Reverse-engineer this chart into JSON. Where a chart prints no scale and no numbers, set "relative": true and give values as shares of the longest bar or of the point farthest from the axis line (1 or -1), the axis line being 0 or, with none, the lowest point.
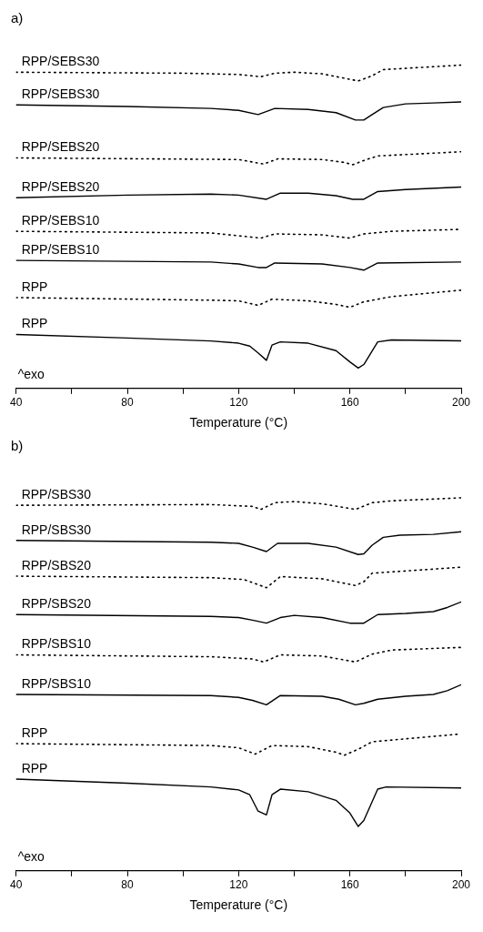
{
  "chart_data": [
    {
      "type": "line",
      "title": "a)",
      "xlabel": "Temperature (°C)",
      "relative": true,
      "xlim": [
        40,
        200
      ],
      "xticks": [
        40,
        {
          "value": 60,
          "label": null
        },
        80,
        {
          "value": 100,
          "label": null
        },
        120,
        {
          "value": 140,
          "label": null
        },
        160,
        {
          "value": 180,
          "label": null
        },
        200
      ],
      "annotations": [
        "^exo"
      ],
      "series": [
        {
          "name": "RPP/SEBS30",
          "color": "#000000",
          "line_style": "dotted",
          "x": [
            40,
            100,
            120,
            128,
            133,
            140,
            150,
            163,
            168,
            172,
            200
          ],
          "values": [
            0.978,
            0.975,
            0.971,
            0.964,
            0.975,
            0.978,
            0.973,
            0.951,
            0.967,
            0.986,
            1.0
          ]
        },
        {
          "name": "RPP/SEBS30",
          "color": "#000000",
          "line_style": "solid",
          "x": [
            40,
            80,
            110,
            120,
            127,
            133,
            145,
            155,
            162,
            165,
            168,
            172,
            180,
            190,
            200
          ],
          "values": [
            0.877,
            0.872,
            0.866,
            0.86,
            0.847,
            0.866,
            0.863,
            0.853,
            0.83,
            0.83,
            0.847,
            0.869,
            0.88,
            0.883,
            0.886
          ]
        },
        {
          "name": "RPP/SEBS20",
          "color": "#000000",
          "line_style": "dotted",
          "x": [
            40,
            120,
            129,
            134,
            150,
            158,
            161,
            166,
            170,
            200
          ],
          "values": [
            0.713,
            0.708,
            0.694,
            0.71,
            0.708,
            0.699,
            0.692,
            0.708,
            0.719,
            0.732
          ]
        },
        {
          "name": "RPP/SEBS20",
          "color": "#000000",
          "line_style": "solid",
          "x": [
            40,
            80,
            110,
            120,
            130,
            135,
            145,
            155,
            161,
            165,
            170,
            180,
            200
          ],
          "values": [
            0.59,
            0.598,
            0.601,
            0.598,
            0.585,
            0.604,
            0.604,
            0.596,
            0.585,
            0.585,
            0.609,
            0.615,
            0.623
          ]
        },
        {
          "name": "RPP/SEBS10",
          "color": "#000000",
          "line_style": "dotted",
          "x": [
            40,
            110,
            128,
            133,
            150,
            160,
            165,
            175,
            200
          ],
          "values": [
            0.486,
            0.481,
            0.465,
            0.478,
            0.475,
            0.465,
            0.478,
            0.486,
            0.492
          ]
        },
        {
          "name": "RPP/SEBS10",
          "color": "#000000",
          "line_style": "solid",
          "x": [
            40,
            110,
            120,
            127,
            130,
            133,
            150,
            160,
            165,
            170,
            200
          ],
          "values": [
            0.396,
            0.391,
            0.385,
            0.374,
            0.374,
            0.388,
            0.385,
            0.374,
            0.366,
            0.388,
            0.391
          ]
        },
        {
          "name": "RPP",
          "color": "#000000",
          "line_style": "dotted",
          "x": [
            40,
            110,
            120,
            127,
            132,
            145,
            155,
            160,
            165,
            175,
            200
          ],
          "values": [
            0.281,
            0.273,
            0.271,
            0.257,
            0.276,
            0.271,
            0.26,
            0.251,
            0.268,
            0.284,
            0.304
          ]
        },
        {
          "name": "RPP",
          "color": "#000000",
          "line_style": "solid",
          "x": [
            40,
            80,
            110,
            120,
            124,
            127,
            130,
            132,
            135,
            145,
            155,
            160,
            163,
            165,
            170,
            175,
            200
          ],
          "values": [
            0.167,
            0.156,
            0.147,
            0.14,
            0.131,
            0.11,
            0.087,
            0.134,
            0.144,
            0.14,
            0.117,
            0.082,
            0.063,
            0.074,
            0.144,
            0.15,
            0.147
          ]
        }
      ]
    },
    {
      "type": "line",
      "title": "b)",
      "xlabel": "Temperature (°C)",
      "relative": true,
      "xlim": [
        40,
        200
      ],
      "xticks": [
        40,
        {
          "value": 60,
          "label": null
        },
        80,
        {
          "value": 100,
          "label": null
        },
        120,
        {
          "value": 140,
          "label": null
        },
        160,
        {
          "value": 180,
          "label": null
        },
        200
      ],
      "annotations": [
        "^exo"
      ],
      "series": [
        {
          "name": "RPP/SBS30",
          "color": "#000000",
          "line_style": "dotted",
          "x": [
            40,
            110,
            125,
            128,
            133,
            140,
            150,
            162,
            168,
            175,
            200
          ],
          "values": [
            0.98,
            0.982,
            0.977,
            0.969,
            0.987,
            0.99,
            0.984,
            0.969,
            0.987,
            0.992,
            1.0
          ]
        },
        {
          "name": "RPP/SBS30",
          "color": "#000000",
          "line_style": "solid",
          "x": [
            40,
            110,
            120,
            125,
            130,
            134,
            145,
            155,
            163,
            165,
            168,
            172,
            178,
            190,
            200
          ],
          "values": [
            0.886,
            0.881,
            0.878,
            0.868,
            0.856,
            0.878,
            0.878,
            0.868,
            0.848,
            0.85,
            0.873,
            0.894,
            0.9,
            0.902,
            0.909
          ]
        },
        {
          "name": "RPP/SBS20",
          "color": "#000000",
          "line_style": "dotted",
          "x": [
            40,
            110,
            122,
            130,
            135,
            150,
            162,
            165,
            168,
            200
          ],
          "values": [
            0.79,
            0.786,
            0.781,
            0.759,
            0.789,
            0.783,
            0.765,
            0.775,
            0.798,
            0.814
          ]
        },
        {
          "name": "RPP/SBS20",
          "color": "#000000",
          "line_style": "solid",
          "x": [
            40,
            110,
            120,
            125,
            130,
            135,
            140,
            150,
            160,
            165,
            170,
            180,
            190,
            195,
            200
          ],
          "values": [
            0.687,
            0.682,
            0.679,
            0.672,
            0.664,
            0.679,
            0.685,
            0.679,
            0.664,
            0.664,
            0.687,
            0.69,
            0.695,
            0.706,
            0.721
          ]
        },
        {
          "name": "RPP/SBS10",
          "color": "#000000",
          "line_style": "dotted",
          "x": [
            40,
            110,
            125,
            129,
            135,
            150,
            162,
            168,
            175,
            200
          ],
          "values": [
            0.579,
            0.574,
            0.568,
            0.56,
            0.579,
            0.576,
            0.56,
            0.581,
            0.592,
            0.599
          ]
        },
        {
          "name": "RPP/SBS10",
          "color": "#000000",
          "line_style": "solid",
          "x": [
            40,
            110,
            120,
            125,
            130,
            135,
            150,
            156,
            162,
            165,
            170,
            180,
            190,
            195,
            200
          ],
          "values": [
            0.473,
            0.47,
            0.465,
            0.457,
            0.445,
            0.47,
            0.468,
            0.46,
            0.445,
            0.449,
            0.46,
            0.468,
            0.473,
            0.483,
            0.499
          ]
        },
        {
          "name": "RPP",
          "color": "#000000",
          "line_style": "dotted",
          "x": [
            40,
            110,
            120,
            126,
            132,
            145,
            155,
            158,
            163,
            168,
            200
          ],
          "values": [
            0.341,
            0.336,
            0.33,
            0.313,
            0.336,
            0.333,
            0.318,
            0.31,
            0.326,
            0.346,
            0.367
          ]
        },
        {
          "name": "RPP",
          "color": "#000000",
          "line_style": "solid",
          "x": [
            40,
            80,
            110,
            120,
            124,
            127,
            130,
            132,
            135,
            145,
            155,
            160,
            163,
            165,
            170,
            173,
            200
          ],
          "values": [
            0.246,
            0.235,
            0.225,
            0.217,
            0.204,
            0.16,
            0.15,
            0.204,
            0.219,
            0.212,
            0.189,
            0.155,
            0.119,
            0.135,
            0.219,
            0.225,
            0.222
          ]
        }
      ]
    }
  ]
}
